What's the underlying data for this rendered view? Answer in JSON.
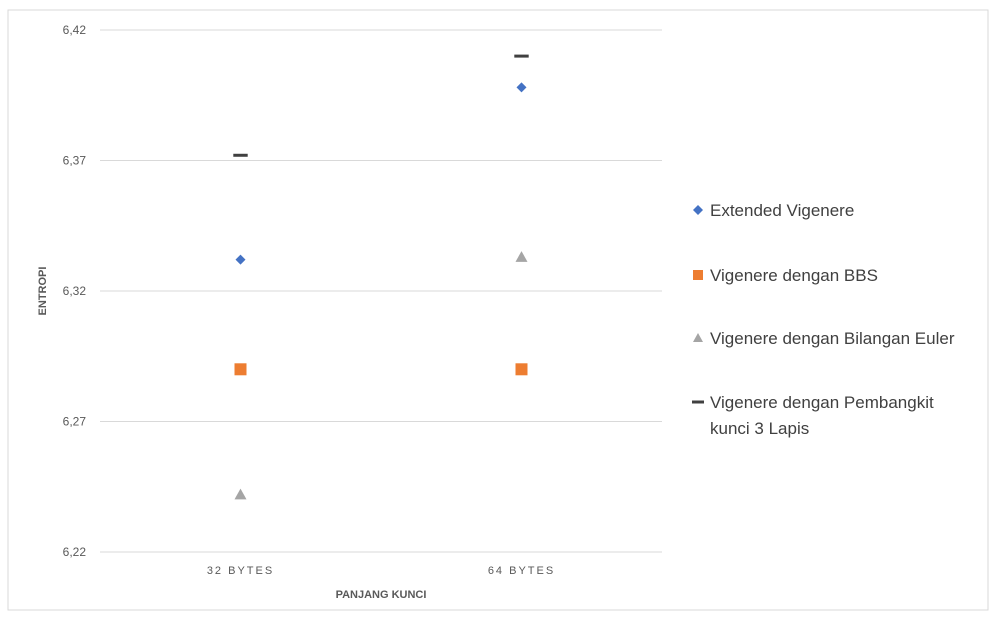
{
  "chart_data": {
    "type": "scatter",
    "categories": [
      "32 BYTES",
      "64 BYTES"
    ],
    "xlabel": "PANJANG KUNCI",
    "ylabel": "ENTROPI",
    "ylim": [
      6.22,
      6.42
    ],
    "yticks": [
      "6,22",
      "6,27",
      "6,32",
      "6,37",
      "6,42"
    ],
    "grid": true,
    "legend_position": "right",
    "series": [
      {
        "name": "Extended Vigenere",
        "marker": "diamond",
        "color": "#4472C4",
        "values": [
          6.332,
          6.398
        ]
      },
      {
        "name": "Vigenere dengan BBS",
        "marker": "square",
        "color": "#ED7D31",
        "values": [
          6.29,
          6.29
        ]
      },
      {
        "name": "Vigenere dengan Bilangan Euler",
        "marker": "triangle",
        "color": "#A5A5A5",
        "values": [
          6.242,
          6.333
        ]
      },
      {
        "name": "Vigenere dengan Pembangkit kunci 3 Lapis",
        "marker": "dash",
        "color": "#404040",
        "values": [
          6.372,
          6.41
        ]
      }
    ]
  }
}
